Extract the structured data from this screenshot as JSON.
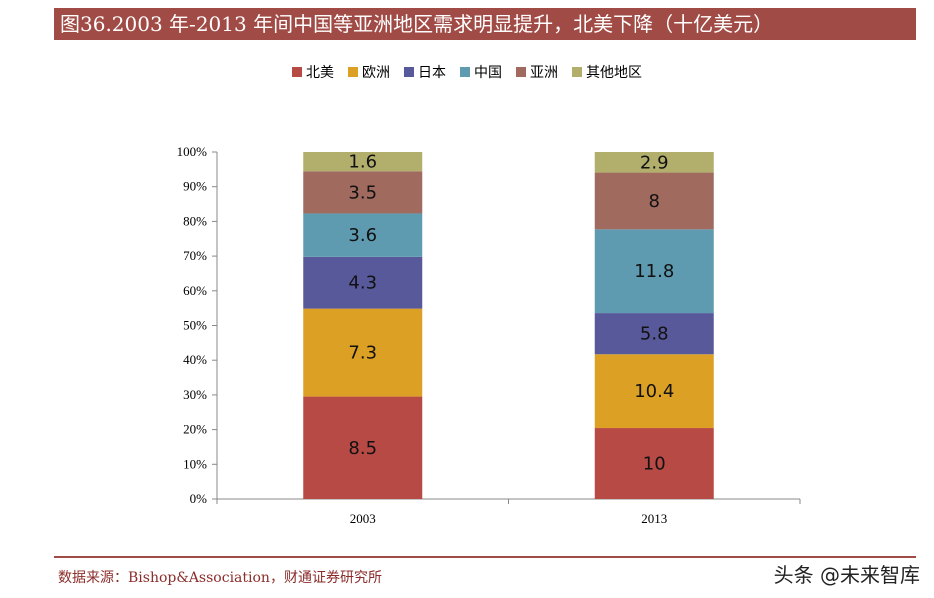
{
  "header": {
    "title": "图36.2003 年-2013 年间中国等亚洲地区需求明显提升，北美下降（十亿美元）"
  },
  "chart_data": {
    "type": "bar",
    "stacked": true,
    "percent_stacked": true,
    "title": "图36.2003 年-2013 年间中国等亚洲地区需求明显提升，北美下降（十亿美元）",
    "categories": [
      "2003",
      "2013"
    ],
    "series": [
      {
        "name": "北美",
        "values": [
          8.5,
          10
        ],
        "color": "#b84a46"
      },
      {
        "name": "欧洲",
        "values": [
          7.3,
          10.4
        ],
        "color": "#dca024"
      },
      {
        "name": "日本",
        "values": [
          4.3,
          5.8
        ],
        "color": "#58599b"
      },
      {
        "name": "中国",
        "values": [
          3.6,
          11.8
        ],
        "color": "#5e9bb0"
      },
      {
        "name": "亚洲",
        "values": [
          3.5,
          8
        ],
        "color": "#a06a5e"
      },
      {
        "name": "其他地区",
        "values": [
          1.6,
          2.9
        ],
        "color": "#b2ae6c"
      }
    ],
    "yticks": [
      "0%",
      "10%",
      "20%",
      "30%",
      "40%",
      "50%",
      "60%",
      "70%",
      "80%",
      "90%",
      "100%"
    ],
    "ylim": [
      0,
      100
    ],
    "xlabel": "",
    "ylabel": "",
    "legend_position": "top"
  },
  "footer": {
    "source": "数据来源：Bishop&Association，财通证券研究所",
    "watermark": "头条 @未来智库"
  }
}
